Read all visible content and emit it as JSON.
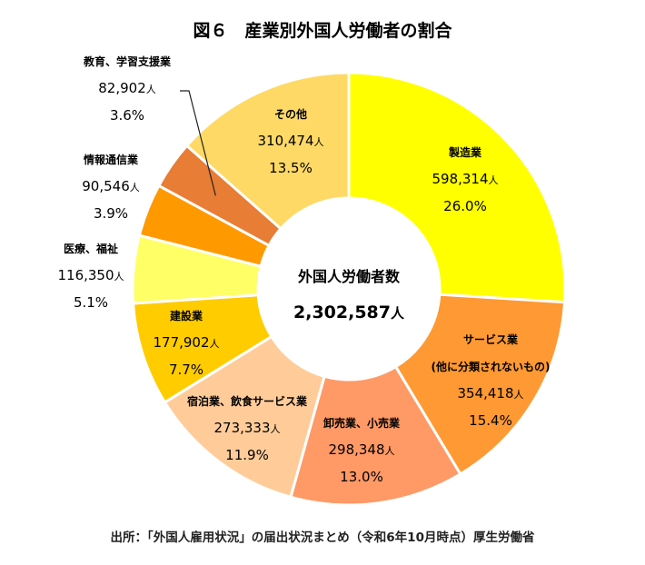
{
  "chart_data": {
    "type": "pie",
    "title": "図６　産業別外国人労働者の割合",
    "center_label": "外国人労働者数",
    "center_value": "2,302,587",
    "center_unit": "人",
    "unit": "人",
    "categories": [
      "製造業",
      "サービス業",
      "卸売業、小売業",
      "宿泊業、飲食サービス業",
      "建設業",
      "医療、福祉",
      "情報通信業",
      "教育、学習支援業",
      "その他"
    ],
    "subtitles": [
      "",
      "(他に分類されないもの)",
      "",
      "",
      "",
      "",
      "",
      "",
      ""
    ],
    "values": [
      598314,
      354418,
      298348,
      273333,
      177902,
      116350,
      90546,
      82902,
      310474
    ],
    "value_labels": [
      "598,314",
      "354,418",
      "298,348",
      "273,333",
      "177,902",
      "116,350",
      "90,546",
      "82,902",
      "310,474"
    ],
    "percent_labels": [
      "26.0%",
      "15.4%",
      "13.0%",
      "11.9%",
      "7.7%",
      "5.1%",
      "3.9%",
      "3.6%",
      "13.5%"
    ],
    "colors": [
      "#FFFF00",
      "#FF9933",
      "#FF9966",
      "#FFCC99",
      "#FFCC00",
      "#FFFF66",
      "#FF9900",
      "#E87D35",
      "#FFD966"
    ],
    "source": "出所：「外国人雇用状況」の届出状況まとめ（令和6年10月時点）厚生労働省"
  }
}
